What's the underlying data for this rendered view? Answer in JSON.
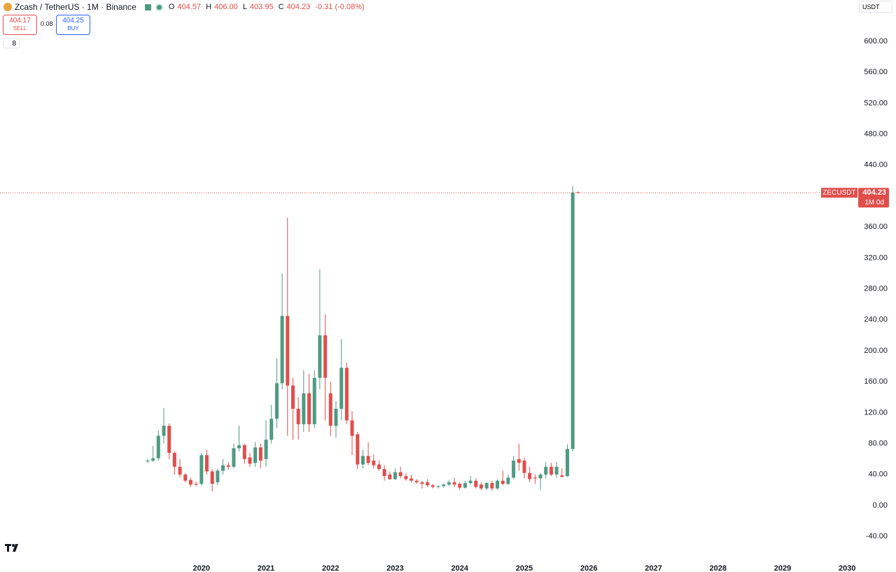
{
  "header": {
    "symbol": "Zcash / TetherUS · 1M · Binance",
    "ohlc": [
      [
        "O",
        "404.57"
      ],
      [
        "H",
        "406.00"
      ],
      [
        "L",
        "403.95"
      ],
      [
        "C",
        "404.23"
      ]
    ],
    "change": "-0.31 (-0.08%)",
    "sell_price": "404.17",
    "sell": "SELL",
    "spread": "0.08",
    "buy_price": "404.25",
    "buy": "BUY",
    "indicators": "8",
    "currency": "USDT"
  },
  "price_tag": {
    "symbol": "ZECUSDT",
    "countdown": "1M 0d"
  },
  "chart_data": {
    "type": "candlestick",
    "up_color": "#4f9a82",
    "down_color": "#e04e4b",
    "x": [
      2019.167,
      2019.25,
      2019.333,
      2019.417,
      2019.5,
      2019.583,
      2019.667,
      2019.75,
      2019.833,
      2019.917,
      2020,
      2020.083,
      2020.167,
      2020.25,
      2020.333,
      2020.417,
      2020.5,
      2020.583,
      2020.667,
      2020.75,
      2020.833,
      2020.917,
      2021,
      2021.083,
      2021.167,
      2021.25,
      2021.333,
      2021.417,
      2021.5,
      2021.583,
      2021.667,
      2021.75,
      2021.833,
      2021.917,
      2022,
      2022.083,
      2022.167,
      2022.25,
      2022.333,
      2022.417,
      2022.5,
      2022.583,
      2022.667,
      2022.75,
      2022.833,
      2022.917,
      2023,
      2023.083,
      2023.167,
      2023.25,
      2023.333,
      2023.417,
      2023.5,
      2023.583,
      2023.667,
      2023.75,
      2023.833,
      2023.917,
      2024,
      2024.083,
      2024.167,
      2024.25,
      2024.333,
      2024.417,
      2024.5,
      2024.583,
      2024.667,
      2024.75,
      2024.833,
      2024.917,
      2025,
      2025.083,
      2025.167,
      2025.25,
      2025.333,
      2025.417,
      2025.5,
      2025.583,
      2025.667,
      2025.75,
      2025.833
    ],
    "open": [
      57,
      58,
      61,
      90,
      103,
      68,
      50,
      40,
      33,
      28,
      28,
      65,
      44,
      30,
      45,
      52,
      50,
      74,
      78,
      62,
      55,
      75,
      60,
      85,
      112,
      158,
      245,
      155,
      125,
      105,
      145,
      105,
      165,
      220,
      145,
      103,
      125,
      178,
      110,
      92,
      53,
      64,
      58,
      53,
      47,
      40,
      34,
      43,
      38,
      35,
      32,
      30,
      30,
      26,
      24,
      25,
      27,
      30,
      28,
      23,
      29,
      32,
      27,
      22,
      29,
      22,
      32,
      28,
      36,
      60,
      58,
      42,
      36,
      35,
      40,
      50,
      40,
      39,
      38,
      73,
      404.57
    ],
    "high": [
      60,
      77,
      97,
      126,
      106,
      70,
      60,
      42,
      36,
      31,
      68,
      72,
      47,
      48,
      60,
      56,
      80,
      103,
      80,
      68,
      82,
      80,
      110,
      130,
      190,
      300,
      372,
      165,
      140,
      175,
      170,
      175,
      305,
      247,
      160,
      135,
      215,
      185,
      122,
      95,
      72,
      82,
      66,
      58,
      52,
      44,
      48,
      50,
      42,
      40,
      34,
      32,
      34,
      28,
      26,
      28,
      33,
      36,
      30,
      32,
      38,
      35,
      30,
      30,
      32,
      34,
      45,
      40,
      64,
      80,
      62,
      50,
      40,
      42,
      56,
      55,
      56,
      48,
      79,
      413,
      406
    ],
    "low": [
      55,
      56,
      58,
      80,
      60,
      40,
      36,
      30,
      24,
      25,
      26,
      40,
      18,
      26,
      40,
      46,
      48,
      70,
      54,
      50,
      50,
      48,
      50,
      80,
      100,
      150,
      90,
      85,
      85,
      95,
      95,
      100,
      150,
      110,
      90,
      88,
      110,
      105,
      65,
      47,
      48,
      52,
      48,
      45,
      32,
      33,
      33,
      35,
      32,
      30,
      28,
      22,
      24,
      22,
      22,
      23,
      25,
      24,
      20,
      22,
      27,
      22,
      20,
      20,
      19,
      20,
      26,
      26,
      34,
      45,
      35,
      30,
      28,
      20,
      35,
      38,
      36,
      36,
      37,
      70,
      403.95
    ],
    "close": [
      58,
      61,
      90,
      103,
      68,
      50,
      40,
      32,
      27,
      27,
      65,
      44,
      28,
      45,
      52,
      50,
      74,
      78,
      60,
      54,
      75,
      58,
      85,
      112,
      158,
      245,
      155,
      125,
      105,
      145,
      105,
      165,
      220,
      165,
      103,
      125,
      178,
      110,
      90,
      53,
      64,
      55,
      52,
      47,
      38,
      34,
      43,
      38,
      34,
      32,
      30,
      28,
      26,
      24,
      25,
      27,
      30,
      27,
      23,
      29,
      32,
      24,
      22,
      29,
      22,
      32,
      28,
      36,
      58,
      55,
      42,
      34,
      35,
      40,
      50,
      40,
      50,
      37,
      73,
      404.57,
      404.23
    ],
    "xlim": [
      2016.88,
      2030.16
    ],
    "xticks": [
      2020,
      2021,
      2022,
      2023,
      2024,
      2025,
      2026,
      2027,
      2028,
      2029,
      2030
    ],
    "ylim": [
      -67.9,
      653.4
    ],
    "yticks": [
      {
        "value": -40,
        "label": "-40.00"
      },
      {
        "value": 0,
        "label": "0.00"
      },
      {
        "value": 40,
        "label": "40.00"
      },
      {
        "value": 80,
        "label": "80.00"
      },
      {
        "value": 120,
        "label": "120.00"
      },
      {
        "value": 160,
        "label": "160.00"
      },
      {
        "value": 200,
        "label": "200.00"
      },
      {
        "value": 240,
        "label": "240.00"
      },
      {
        "value": 280,
        "label": "280.00"
      },
      {
        "value": 320,
        "label": "320.00"
      },
      {
        "value": 360,
        "label": "360.00"
      },
      {
        "value": 440,
        "label": "440.00"
      },
      {
        "value": 480,
        "label": "480.00"
      },
      {
        "value": 520,
        "label": "520.00"
      },
      {
        "value": 560,
        "label": "560.00"
      },
      {
        "value": 600,
        "label": "600.00"
      }
    ]
  }
}
